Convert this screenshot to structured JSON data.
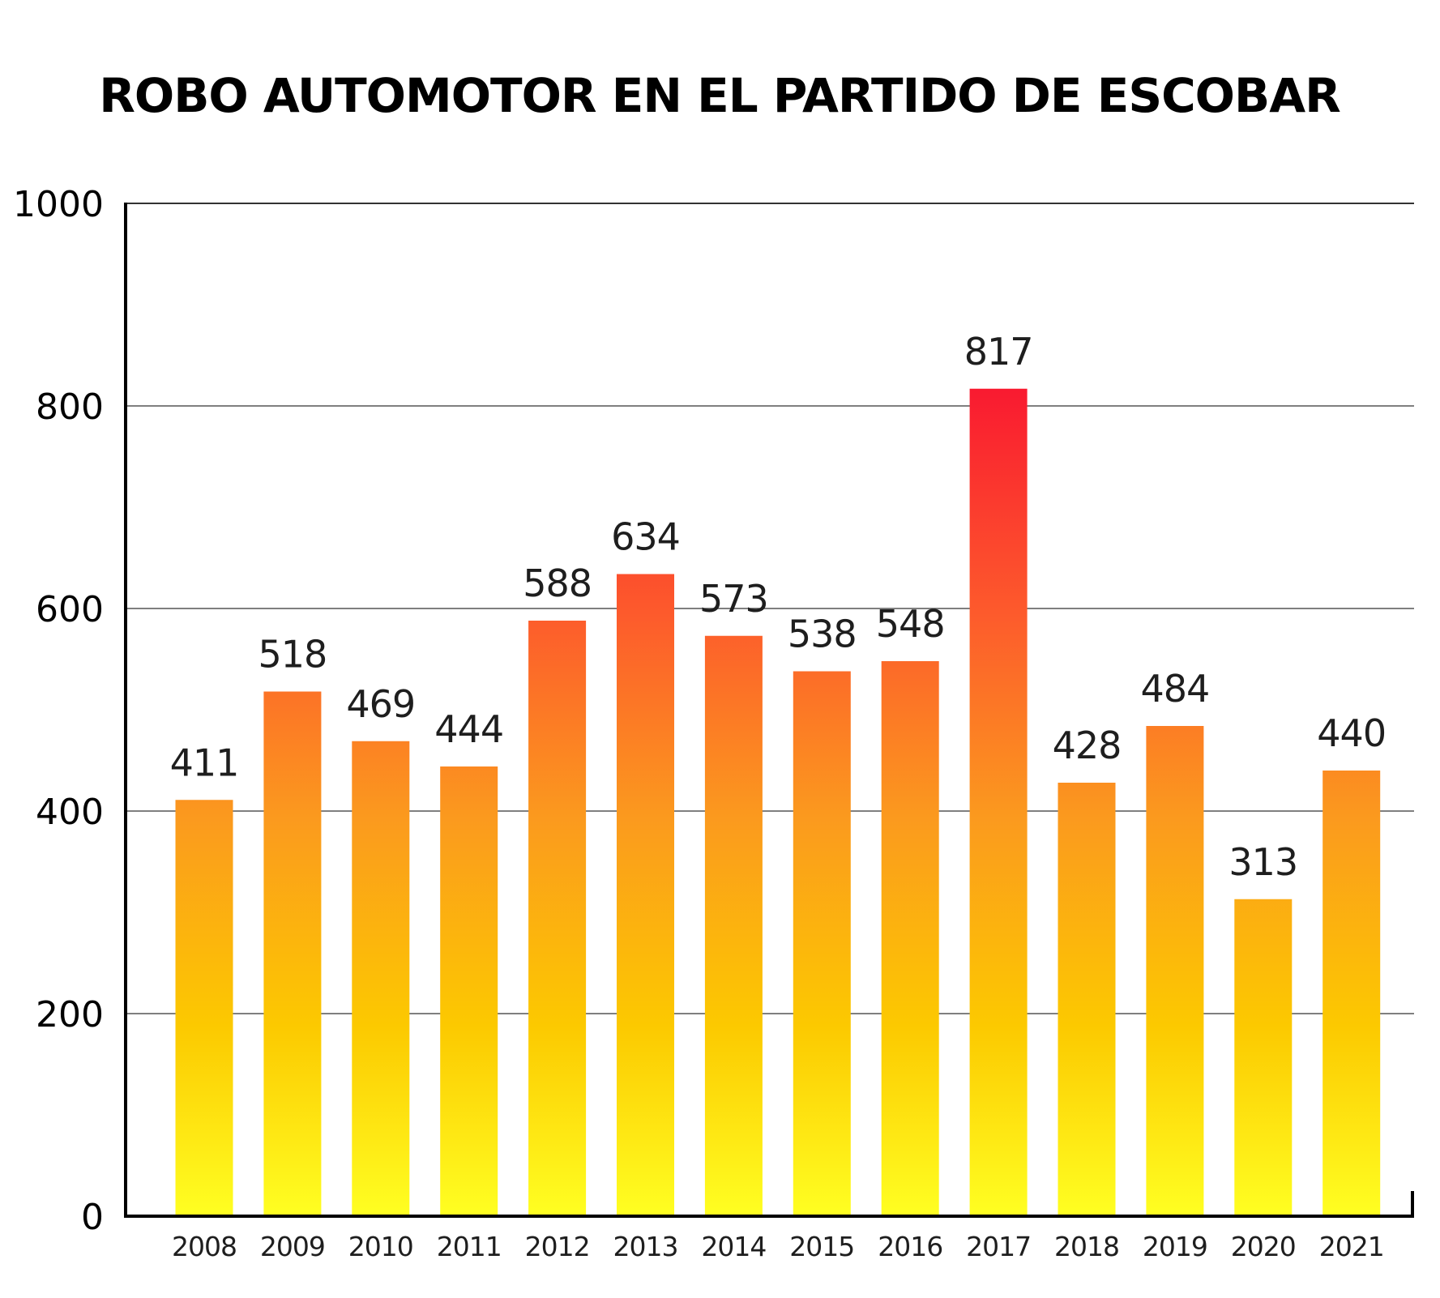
{
  "chart_data": {
    "type": "bar",
    "title": "ROBO AUTOMOTOR EN EL PARTIDO DE ESCOBAR",
    "xlabel": "",
    "ylabel": "",
    "categories": [
      "2008",
      "2009",
      "2010",
      "2011",
      "2012",
      "2013",
      "2014",
      "2015",
      "2016",
      "2017",
      "2018",
      "2019",
      "2020",
      "2021"
    ],
    "values": [
      411,
      518,
      469,
      444,
      588,
      634,
      573,
      538,
      548,
      817,
      428,
      484,
      313,
      440
    ],
    "data_labels": [
      "411",
      "518",
      "469",
      "444",
      "588",
      "634",
      "573",
      "538",
      "548",
      "817",
      "428",
      "484",
      "313",
      "440"
    ],
    "ylim": [
      0,
      1000
    ],
    "yticks": [
      0,
      200,
      400,
      600,
      800,
      1000
    ],
    "ytick_labels": [
      "0",
      "200",
      "400",
      "600",
      "800",
      "1000"
    ],
    "grid": true,
    "legend": "none",
    "gradient_colors": {
      "top": "#f91a30",
      "upper_mid": "#fd5a2c",
      "mid": "#fb9a1e",
      "lower_mid": "#fcc900",
      "bottom": "#ffff22"
    },
    "gridline_color": "#555555",
    "axis_color": "#000000"
  }
}
